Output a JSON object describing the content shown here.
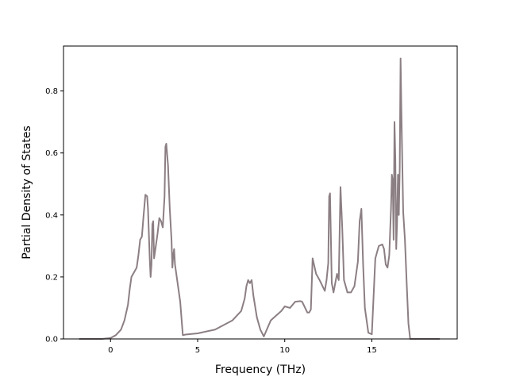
{
  "chart_data": {
    "type": "line",
    "title": "",
    "xlabel": "Frequency (THz)",
    "ylabel": "Partial Density of States",
    "xlim": [
      -2.7,
      19.9
    ],
    "ylim": [
      0,
      0.945
    ],
    "xticks": [
      0,
      5,
      10,
      15
    ],
    "xtick_labels": [
      "0",
      "5",
      "10",
      "15"
    ],
    "yticks": [
      0.0,
      0.2,
      0.4,
      0.6,
      0.8
    ],
    "ytick_labels": [
      "0.0",
      "0.2",
      "0.4",
      "0.6",
      "0.8"
    ],
    "grid": false,
    "legend": null,
    "series": [
      {
        "color": "#8c7f83",
        "x": [
          -1.8,
          -0.5,
          0.0,
          0.3,
          0.6,
          0.8,
          1.0,
          1.1,
          1.2,
          1.3,
          1.5,
          1.6,
          1.7,
          1.8,
          1.9,
          2.0,
          2.1,
          2.15,
          2.25,
          2.3,
          2.35,
          2.4,
          2.45,
          2.5,
          2.6,
          2.7,
          2.8,
          2.9,
          3.0,
          3.1,
          3.15,
          3.2,
          3.3,
          3.4,
          3.5,
          3.55,
          3.6,
          3.65,
          3.7,
          3.8,
          4.0,
          4.15,
          4.3,
          5.0,
          6.0,
          7.0,
          7.5,
          7.7,
          7.8,
          7.9,
          8.0,
          8.1,
          8.2,
          8.4,
          8.6,
          8.8,
          9.2,
          9.6,
          9.8,
          10.0,
          10.3,
          10.6,
          10.9,
          11.0,
          11.3,
          11.4,
          11.5,
          11.6,
          11.8,
          12.0,
          12.3,
          12.4,
          12.5,
          12.55,
          12.6,
          12.7,
          12.8,
          12.9,
          13.0,
          13.1,
          13.2,
          13.3,
          13.4,
          13.6,
          13.8,
          14.0,
          14.2,
          14.3,
          14.4,
          14.5,
          14.6,
          14.8,
          15.0,
          15.2,
          15.4,
          15.6,
          15.7,
          15.8,
          15.9,
          16.0,
          16.1,
          16.15,
          16.2,
          16.25,
          16.3,
          16.35,
          16.4,
          16.45,
          16.5,
          16.55,
          16.6,
          16.65,
          16.7,
          16.8,
          16.9,
          17.0,
          17.1,
          17.2,
          17.3,
          18.0,
          18.9
        ],
        "y": [
          0.0,
          0.0,
          0.003,
          0.012,
          0.03,
          0.06,
          0.11,
          0.16,
          0.2,
          0.21,
          0.23,
          0.27,
          0.32,
          0.33,
          0.4,
          0.465,
          0.46,
          0.42,
          0.26,
          0.2,
          0.24,
          0.37,
          0.38,
          0.26,
          0.3,
          0.34,
          0.39,
          0.38,
          0.36,
          0.46,
          0.62,
          0.63,
          0.56,
          0.42,
          0.32,
          0.23,
          0.27,
          0.29,
          0.24,
          0.2,
          0.12,
          0.012,
          0.014,
          0.018,
          0.03,
          0.06,
          0.09,
          0.13,
          0.17,
          0.19,
          0.18,
          0.19,
          0.14,
          0.07,
          0.03,
          0.008,
          0.06,
          0.08,
          0.09,
          0.105,
          0.1,
          0.12,
          0.122,
          0.12,
          0.085,
          0.085,
          0.095,
          0.26,
          0.21,
          0.19,
          0.155,
          0.19,
          0.245,
          0.46,
          0.47,
          0.18,
          0.15,
          0.18,
          0.21,
          0.19,
          0.49,
          0.36,
          0.19,
          0.15,
          0.15,
          0.17,
          0.25,
          0.38,
          0.42,
          0.24,
          0.1,
          0.02,
          0.015,
          0.26,
          0.3,
          0.305,
          0.29,
          0.24,
          0.23,
          0.27,
          0.42,
          0.53,
          0.51,
          0.32,
          0.7,
          0.58,
          0.29,
          0.38,
          0.53,
          0.4,
          0.55,
          0.905,
          0.72,
          0.41,
          0.32,
          0.18,
          0.05,
          0.0,
          0.0,
          0.0,
          0.0
        ]
      }
    ]
  }
}
